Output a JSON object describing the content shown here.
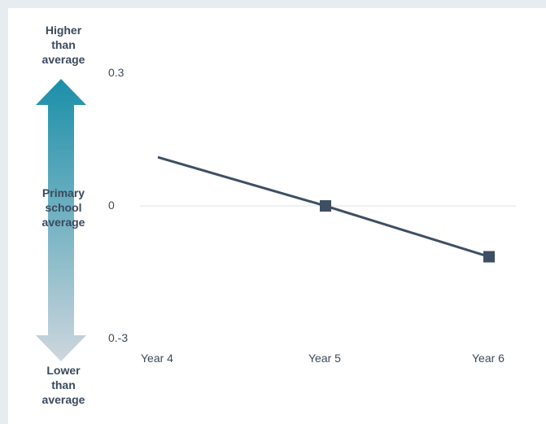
{
  "colors": {
    "background": "#e6ecf0",
    "panel": "#ffffff",
    "line": "#3d4f63",
    "marker": "#3d4f63",
    "zero_line": "#dde4ea",
    "arrow_top": "#1a8fa8",
    "arrow_bottom": "#ced6de",
    "text": "#3a4a5c"
  },
  "arrow": {
    "top_label": "Higher\nthan\naverage",
    "middle_label": "Primary\nschool\naverage",
    "bottom_label": "Lower\nthan\naverage"
  },
  "chart_data": {
    "type": "line",
    "categories": [
      "Year 4",
      "Year 5",
      "Year 6"
    ],
    "series": [
      {
        "values": [
          0.11,
          0.0,
          -0.115
        ],
        "markers": [
          false,
          true,
          true
        ]
      }
    ],
    "ylim": [
      -0.3,
      0.3
    ],
    "y_ticks": [
      {
        "value": 0.3,
        "label": "0.3"
      },
      {
        "value": 0,
        "label": "0"
      },
      {
        "value": -0.3,
        "label": "0.-3"
      }
    ],
    "reference_line_at": 0,
    "grid": false
  }
}
